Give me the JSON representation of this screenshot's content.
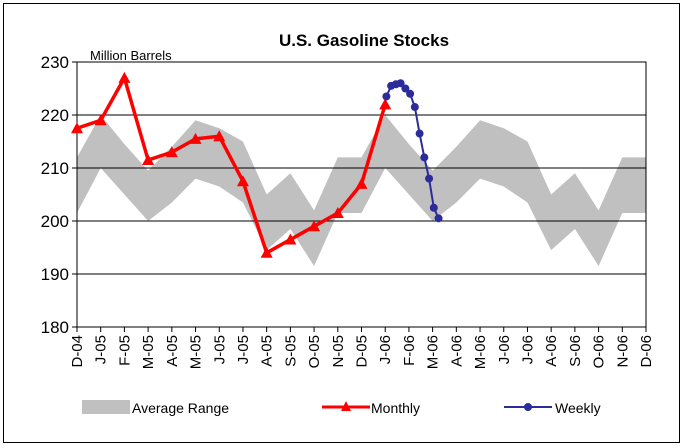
{
  "chart_data": {
    "type": "line",
    "title": "U.S. Gasoline Stocks",
    "ylabel": "Million Barrels",
    "xlabel": "",
    "ylim": [
      180,
      230
    ],
    "yticks": [
      180,
      190,
      200,
      210,
      220,
      230
    ],
    "grid": "horizontal",
    "legend_placement": "bottom",
    "categories": [
      "D-04",
      "J-05",
      "F-05",
      "M-05",
      "A-05",
      "M-05",
      "J-05",
      "J-05",
      "A-05",
      "S-05",
      "O-05",
      "N-05",
      "D-05",
      "J-06",
      "F-06",
      "M-06",
      "A-06",
      "M-06",
      "J-06",
      "J-06",
      "A-06",
      "S-06",
      "O-06",
      "N-06",
      "D-06"
    ],
    "average_range": {
      "name": "Average Range",
      "color": "#c0c0c0",
      "lower": [
        201.5,
        210,
        205,
        200,
        203.5,
        208,
        206.5,
        203.5,
        194.5,
        198.5,
        191.5,
        201.5,
        201.5,
        210,
        205,
        200,
        203.5,
        208,
        206.5,
        203.5,
        194.5,
        198.5,
        191.5,
        201.5,
        201.5
      ],
      "upper": [
        212,
        220,
        214.5,
        209.5,
        214,
        219,
        217.5,
        215,
        205,
        209,
        202,
        212,
        212,
        220,
        214.5,
        209.5,
        214,
        219,
        217.5,
        215,
        205,
        209,
        202,
        212,
        212
      ]
    },
    "series": [
      {
        "name": "Monthly",
        "color": "#ff0000",
        "values": [
          217.5,
          219,
          227,
          211.5,
          213,
          215.5,
          216,
          207.5,
          194,
          196.5,
          199,
          201.5,
          207,
          222,
          null,
          null,
          null,
          null,
          null,
          null,
          null,
          null,
          null,
          null,
          null
        ]
      },
      {
        "name": "Weekly",
        "color": "#2b2b9a",
        "x": [
          13.05,
          13.25,
          13.45,
          13.65,
          13.85,
          14.05,
          14.25,
          14.45,
          14.65,
          14.85,
          15.05,
          15.25
        ],
        "values": [
          223.5,
          225.5,
          225.8,
          226,
          225,
          224,
          221.5,
          216.5,
          212,
          208,
          202.5,
          200.5
        ]
      }
    ]
  }
}
